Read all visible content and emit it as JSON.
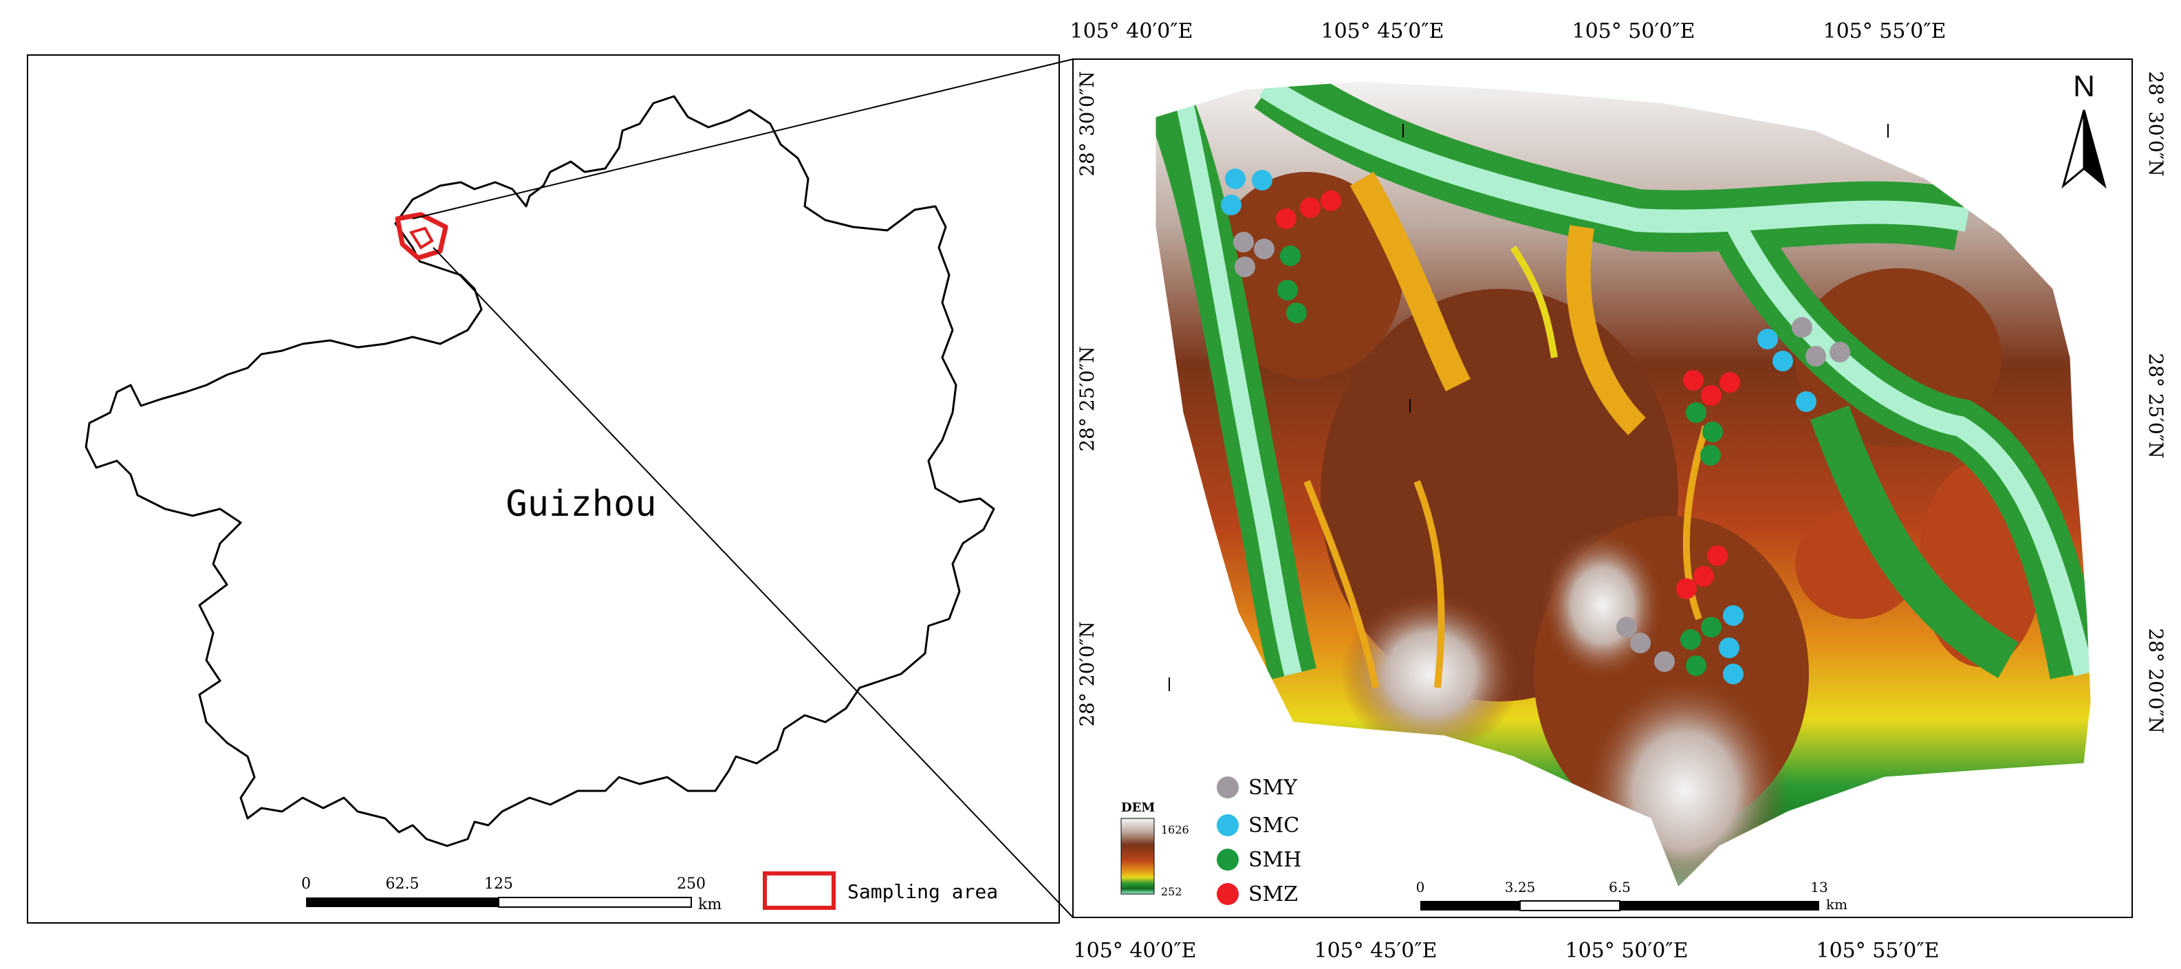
{
  "left_panel": {
    "region_label": "Guizhou",
    "scalebar": {
      "ticks": [
        "0",
        "62.5",
        "125",
        "250"
      ],
      "unit": "km"
    },
    "legend": {
      "label": "Sampling area"
    }
  },
  "right_panel": {
    "top_ticks": [
      "105° 40′0″E",
      "105° 45′0″E",
      "105° 50′0″E",
      "105° 55′0″E"
    ],
    "bottom_ticks": [
      "105° 40′0″E",
      "105° 45′0″E",
      "105° 50′0″E",
      "105° 55′0″E"
    ],
    "left_ticks": [
      "28° 30′0″N",
      "28° 25′0″N",
      "28° 20′0″N"
    ],
    "right_ticks": [
      "28° 30′0″N",
      "28° 25′0″N",
      "28° 20′0″N"
    ],
    "north_label": "N",
    "dem_legend": {
      "title": "DEM",
      "high": "1626",
      "low": "252"
    },
    "legend_items": [
      {
        "label": "SMY",
        "color": "#a09aa0"
      },
      {
        "label": "SMC",
        "color": "#2ebde8"
      },
      {
        "label": "SMH",
        "color": "#1a9a3c"
      },
      {
        "label": "SMZ",
        "color": "#ee1c24"
      }
    ],
    "scalebar": {
      "ticks": [
        "0",
        "3.25",
        "6.5",
        "13"
      ],
      "unit": "km"
    }
  },
  "colors": {
    "dem_high": "#f2f2f2",
    "dem_mid": "#8a3a16",
    "dem_low": "#1e8a2e",
    "river": "#aef0d0",
    "sampling_area": "#e02020"
  }
}
